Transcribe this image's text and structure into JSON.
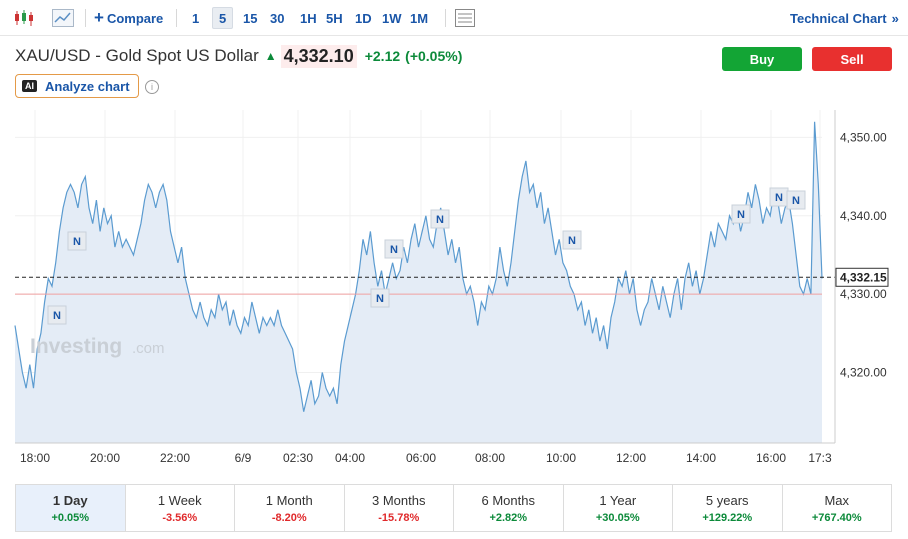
{
  "toolbar": {
    "compare_label": "Compare",
    "intervals": [
      "1",
      "5",
      "15",
      "30",
      "1H",
      "5H",
      "1D",
      "1W",
      "1M"
    ],
    "active_interval": "5",
    "technical_chart_label": "Technical Chart",
    "technical_chart_icon": "double-chevron-right-icon"
  },
  "instrument": {
    "title": "XAU/USD - Gold Spot US Dollar",
    "price": "4,332.10",
    "change": "+2.12",
    "change_pct": "(+0.05%)",
    "direction_icon": "arrow-up-icon"
  },
  "actions": {
    "buy_label": "Buy",
    "sell_label": "Sell"
  },
  "analyze": {
    "badge": "AI",
    "label": "Analyze chart"
  },
  "colors": {
    "up": "#0c8a3a",
    "down": "#e0292b",
    "link": "#1a56a8",
    "buy": "#13a535",
    "sell": "#e8302f",
    "series_line": "#5b9bd0",
    "series_fill": "#e4ecf6"
  },
  "chart_data": {
    "type": "area",
    "watermark_brand": "Investing",
    "watermark_suffix": ".com",
    "x_tick_labels": [
      "18:00",
      "20:00",
      "22:00",
      "6/9",
      "02:30",
      "04:00",
      "06:00",
      "08:00",
      "10:00",
      "12:00",
      "14:00",
      "16:00",
      "17:3"
    ],
    "y_tick_labels": [
      "4,350.00",
      "4,340.00",
      "4,330.00",
      "4,320.00"
    ],
    "ylim": [
      4311.0,
      4353.5
    ],
    "current_price_label": "4,332.15",
    "current_price": 4332.15,
    "previous_close": 4330.0,
    "news_marker_label": "N",
    "series": [
      {
        "values": [
          4326,
          4323,
          4320,
          4318,
          4321,
          4318,
          4323,
          4325,
          4329,
          4332,
          4331,
          4334,
          4338,
          4341,
          4343,
          4344,
          4343,
          4341,
          4344,
          4345,
          4341,
          4339,
          4342,
          4338,
          4341,
          4339,
          4340,
          4336,
          4338,
          4336,
          4337,
          4336,
          4335,
          4337,
          4339,
          4342,
          4344,
          4343,
          4341,
          4343,
          4344,
          4342,
          4338,
          4336,
          4334,
          4336,
          4332,
          4330,
          4328,
          4327,
          4329,
          4327,
          4326,
          4328,
          4327,
          4330,
          4328,
          4329,
          4326,
          4328,
          4326,
          4325,
          4327,
          4326,
          4329,
          4327,
          4325,
          4327,
          4326,
          4327,
          4326,
          4328,
          4326,
          4325,
          4324,
          4323,
          4320,
          4318,
          4315,
          4317,
          4319,
          4316,
          4317,
          4320,
          4318,
          4317,
          4318,
          4316,
          4321,
          4324,
          4326,
          4328,
          4330,
          4333,
          4337,
          4335,
          4338,
          4334,
          4331,
          4333,
          4330,
          4332,
          4334,
          4332,
          4333,
          4336,
          4334,
          4337,
          4339,
          4336,
          4338,
          4340,
          4337,
          4336,
          4339,
          4341,
          4338,
          4335,
          4337,
          4334,
          4336,
          4332,
          4330,
          4331,
          4329,
          4326,
          4329,
          4328,
          4331,
          4330,
          4332,
          4336,
          4333,
          4331,
          4334,
          4338,
          4342,
          4345,
          4347,
          4343,
          4344,
          4341,
          4343,
          4339,
          4341,
          4338,
          4335,
          4337,
          4334,
          4333,
          4331,
          4330,
          4328,
          4329,
          4326,
          4328,
          4325,
          4327,
          4324,
          4326,
          4323,
          4327,
          4329,
          4332,
          4331,
          4333,
          4330,
          4332,
          4328,
          4326,
          4328,
          4329,
          4332,
          4330,
          4328,
          4331,
          4329,
          4327,
          4330,
          4332,
          4328,
          4332,
          4334,
          4331,
          4333,
          4330,
          4332,
          4335,
          4338,
          4336,
          4339,
          4338,
          4337,
          4340,
          4339,
          4341,
          4338,
          4340,
          4343,
          4341,
          4344,
          4342,
          4339,
          4341,
          4340,
          4343,
          4342,
          4339,
          4341,
          4342,
          4339,
          4335,
          4331,
          4330,
          4332,
          4330,
          4352,
          4344,
          4332
        ]
      }
    ]
  },
  "periods": [
    {
      "label": "1 Day",
      "change": "+0.05%",
      "dir": "pos",
      "active": true
    },
    {
      "label": "1 Week",
      "change": "-3.56%",
      "dir": "neg",
      "active": false
    },
    {
      "label": "1 Month",
      "change": "-8.20%",
      "dir": "neg",
      "active": false
    },
    {
      "label": "3 Months",
      "change": "-15.78%",
      "dir": "neg",
      "active": false
    },
    {
      "label": "6 Months",
      "change": "+2.82%",
      "dir": "pos",
      "active": false
    },
    {
      "label": "1 Year",
      "change": "+30.05%",
      "dir": "pos",
      "active": false
    },
    {
      "label": "5 years",
      "change": "+129.22%",
      "dir": "pos",
      "active": false
    },
    {
      "label": "Max",
      "change": "+767.40%",
      "dir": "pos",
      "active": false
    }
  ]
}
